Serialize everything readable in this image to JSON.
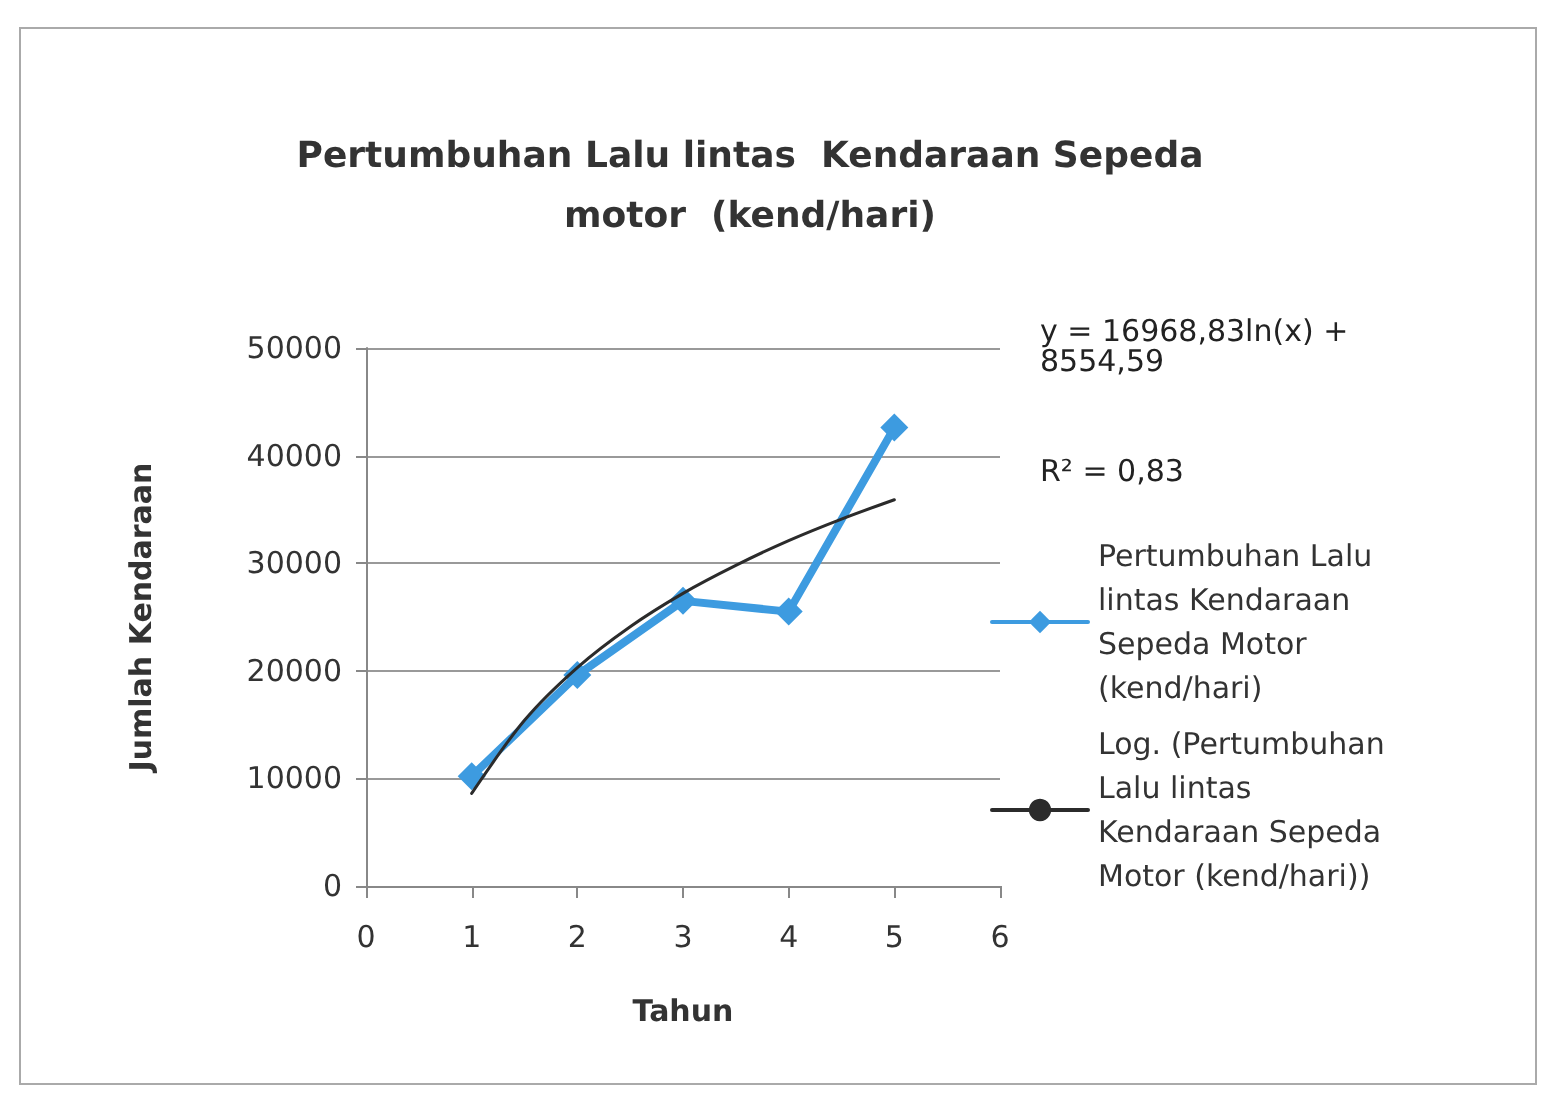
{
  "chart_data": {
    "type": "line",
    "title": "Pertumbuhan Lalu lintas  Kendaraan Sepeda motor  (kend/hari)",
    "xlabel": "Tahun",
    "ylabel": "Jumlah Kendaraan",
    "annotations": [
      "y = 16968,83ln(x) + 8554,59",
      "R² = 0,83"
    ],
    "x": [
      1,
      2,
      3,
      4,
      5
    ],
    "series": [
      {
        "name": "Pertumbuhan Lalu lintas Kendaraan Sepeda Motor (kend/hari)",
        "color": "#3d9be0",
        "marker": "diamond",
        "values": [
          10200,
          19600,
          26500,
          25500,
          42600
        ]
      },
      {
        "name": "Log. (Pertumbuhan Lalu lintas Kendaraan Sepeda Motor (kend/hari))",
        "color": "#2b2b2b",
        "marker": "none",
        "x": [
          1,
          1.5,
          2,
          2.5,
          3,
          3.5,
          4,
          4.5,
          5
        ],
        "values": [
          8600,
          15400,
          20300,
          24100,
          27200,
          29800,
          32100,
          34100,
          35900
        ]
      }
    ],
    "xlim": [
      0,
      6
    ],
    "xticks": [
      0,
      1,
      2,
      3,
      4,
      5,
      6
    ],
    "ylim": [
      0,
      50000
    ],
    "yticks": [
      0,
      10000,
      20000,
      30000,
      40000,
      50000
    ],
    "grid": "y",
    "legend": "right",
    "line_style": "solid"
  }
}
